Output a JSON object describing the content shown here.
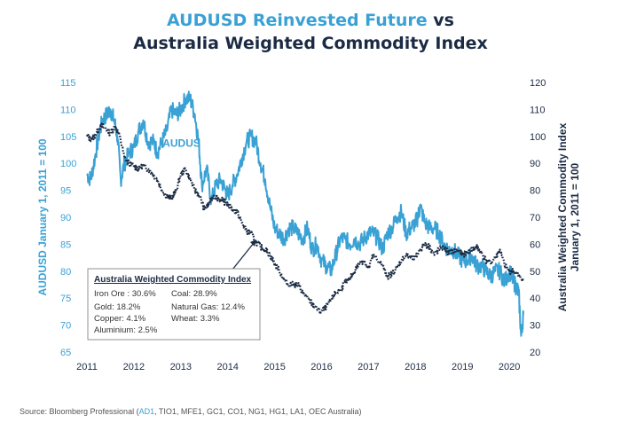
{
  "title": {
    "part1": "AUDUSD Reinvested Future",
    "part2": " vs",
    "line2": "Australia Weighted Commodity Index"
  },
  "colors": {
    "aud": "#3aa1d4",
    "index": "#1b2b44"
  },
  "chart_data": {
    "type": "line",
    "title": "AUDUSD Reinvested Future vs Australia Weighted Commodity Index",
    "x_ticks": [
      "2011",
      "2012",
      "2013",
      "2014",
      "2015",
      "2016",
      "2017",
      "2018",
      "2019",
      "2020"
    ],
    "xlim": [
      2011,
      2020.3
    ],
    "y_left": {
      "label": "AUDUSD January 1, 2011 = 100",
      "ylim": [
        65,
        115
      ],
      "ticks": [
        "115",
        "110",
        "105",
        "100",
        "95",
        "90",
        "85",
        "80",
        "75",
        "70",
        "65"
      ]
    },
    "y_right": {
      "label_line1": "Australia Weighted Commodity Index",
      "label_line2": "January 1, 2011 = 100",
      "ylim": [
        20,
        120
      ],
      "ticks": [
        "120",
        "110",
        "100",
        "90",
        "80",
        "70",
        "60",
        "50",
        "40",
        "30",
        "20"
      ]
    },
    "series": [
      {
        "name": "AUDUS",
        "axis": "left",
        "style": "solid",
        "x": [
          2011.0,
          2011.08,
          2011.17,
          2011.25,
          2011.33,
          2011.42,
          2011.5,
          2011.58,
          2011.65,
          2011.72,
          2011.8,
          2011.9,
          2012.0,
          2012.1,
          2012.2,
          2012.3,
          2012.42,
          2012.5,
          2012.6,
          2012.7,
          2012.8,
          2012.9,
          2013.0,
          2013.1,
          2013.2,
          2013.3,
          2013.38,
          2013.45,
          2013.55,
          2013.65,
          2013.75,
          2013.85,
          2013.95,
          2014.0,
          2014.1,
          2014.2,
          2014.3,
          2014.4,
          2014.5,
          2014.6,
          2014.7,
          2014.8,
          2014.9,
          2015.0,
          2015.1,
          2015.2,
          2015.3,
          2015.4,
          2015.5,
          2015.6,
          2015.7,
          2015.8,
          2015.9,
          2016.0,
          2016.1,
          2016.2,
          2016.3,
          2016.4,
          2016.5,
          2016.6,
          2016.7,
          2016.8,
          2016.9,
          2017.0,
          2017.1,
          2017.2,
          2017.3,
          2017.4,
          2017.5,
          2017.6,
          2017.7,
          2017.8,
          2017.9,
          2018.0,
          2018.05,
          2018.1,
          2018.2,
          2018.3,
          2018.4,
          2018.5,
          2018.6,
          2018.7,
          2018.8,
          2018.9,
          2019.0,
          2019.1,
          2019.2,
          2019.3,
          2019.4,
          2019.5,
          2019.6,
          2019.7,
          2019.8,
          2019.9,
          2020.0,
          2020.05,
          2020.1,
          2020.15,
          2020.2,
          2020.25,
          2020.3
        ],
        "values": [
          98,
          97,
          101,
          105,
          108,
          109,
          110,
          108,
          105,
          97,
          100,
          102,
          103,
          106,
          108,
          104,
          104,
          102,
          104,
          106,
          110,
          109,
          110,
          112,
          112,
          109,
          104,
          96,
          99,
          93,
          96,
          97,
          95,
          94,
          96,
          98,
          101,
          104,
          105,
          104,
          100,
          97,
          92,
          88,
          87,
          86,
          88,
          88,
          87,
          86,
          88,
          84,
          85,
          82,
          81,
          80,
          83,
          86,
          86,
          85,
          86,
          85,
          86,
          87,
          87,
          86,
          84,
          87,
          88,
          90,
          91,
          87,
          88,
          89,
          90,
          92,
          89,
          88,
          88,
          87,
          85,
          84,
          84,
          83,
          82,
          82,
          83,
          81,
          81,
          80,
          79,
          80,
          80,
          78,
          80,
          79,
          78,
          77,
          76,
          68,
          72
        ]
      },
      {
        "name": "Australia Weighted Commodity Index",
        "axis": "right",
        "style": "dotted",
        "x": [
          2011.0,
          2011.1,
          2011.2,
          2011.3,
          2011.4,
          2011.5,
          2011.6,
          2011.7,
          2011.8,
          2011.9,
          2012.0,
          2012.1,
          2012.2,
          2012.3,
          2012.4,
          2012.5,
          2012.6,
          2012.7,
          2012.8,
          2012.9,
          2013.0,
          2013.1,
          2013.2,
          2013.3,
          2013.4,
          2013.5,
          2013.6,
          2013.7,
          2013.8,
          2013.9,
          2014.0,
          2014.1,
          2014.2,
          2014.3,
          2014.4,
          2014.5,
          2014.6,
          2014.7,
          2014.8,
          2014.9,
          2015.0,
          2015.1,
          2015.2,
          2015.3,
          2015.4,
          2015.5,
          2015.6,
          2015.7,
          2015.8,
          2015.9,
          2016.0,
          2016.1,
          2016.2,
          2016.3,
          2016.4,
          2016.5,
          2016.6,
          2016.7,
          2016.8,
          2016.9,
          2017.0,
          2017.1,
          2017.2,
          2017.3,
          2017.4,
          2017.5,
          2017.6,
          2017.7,
          2017.8,
          2017.9,
          2018.0,
          2018.1,
          2018.2,
          2018.3,
          2018.4,
          2018.5,
          2018.6,
          2018.7,
          2018.8,
          2018.9,
          2019.0,
          2019.1,
          2019.2,
          2019.3,
          2019.4,
          2019.5,
          2019.6,
          2019.7,
          2019.8,
          2019.9,
          2020.0,
          2020.1,
          2020.2,
          2020.3
        ],
        "values": [
          100,
          99,
          101,
          104,
          103,
          101,
          104,
          100,
          92,
          90,
          89,
          88,
          89,
          88,
          86,
          84,
          80,
          78,
          77,
          80,
          86,
          88,
          84,
          80,
          78,
          73,
          75,
          78,
          77,
          76,
          75,
          73,
          72,
          68,
          65,
          64,
          61,
          59,
          58,
          56,
          53,
          50,
          47,
          45,
          45,
          45,
          42,
          40,
          38,
          36,
          35,
          37,
          39,
          42,
          43,
          46,
          47,
          50,
          53,
          54,
          51,
          56,
          54,
          52,
          48,
          49,
          51,
          54,
          56,
          55,
          55,
          58,
          60,
          59,
          56,
          58,
          59,
          57,
          57,
          58,
          56,
          57,
          58,
          59,
          57,
          54,
          53,
          55,
          58,
          52,
          50,
          50,
          48,
          47
        ]
      }
    ],
    "annotations": [
      {
        "text": "AUDUS",
        "at": [
          2012.8,
          107
        ]
      }
    ],
    "legend_box": {
      "heading": "Australia Weighted Commodity Index",
      "items": [
        "Iron Ore : 30.6%",
        "Coal: 28.9%",
        "Gold: 18.2%",
        "Natural Gas: 12.4%",
        "Copper: 4.1%",
        "Wheat: 3.3%",
        "Aluminium: 2.5%"
      ]
    }
  },
  "source": {
    "prefix": "Source: Bloomberg Professional (",
    "highlight": "AD1",
    "rest": ", TIO1, MFE1, GC1, CO1, NG1, HG1, LA1, OEC Australia)"
  }
}
